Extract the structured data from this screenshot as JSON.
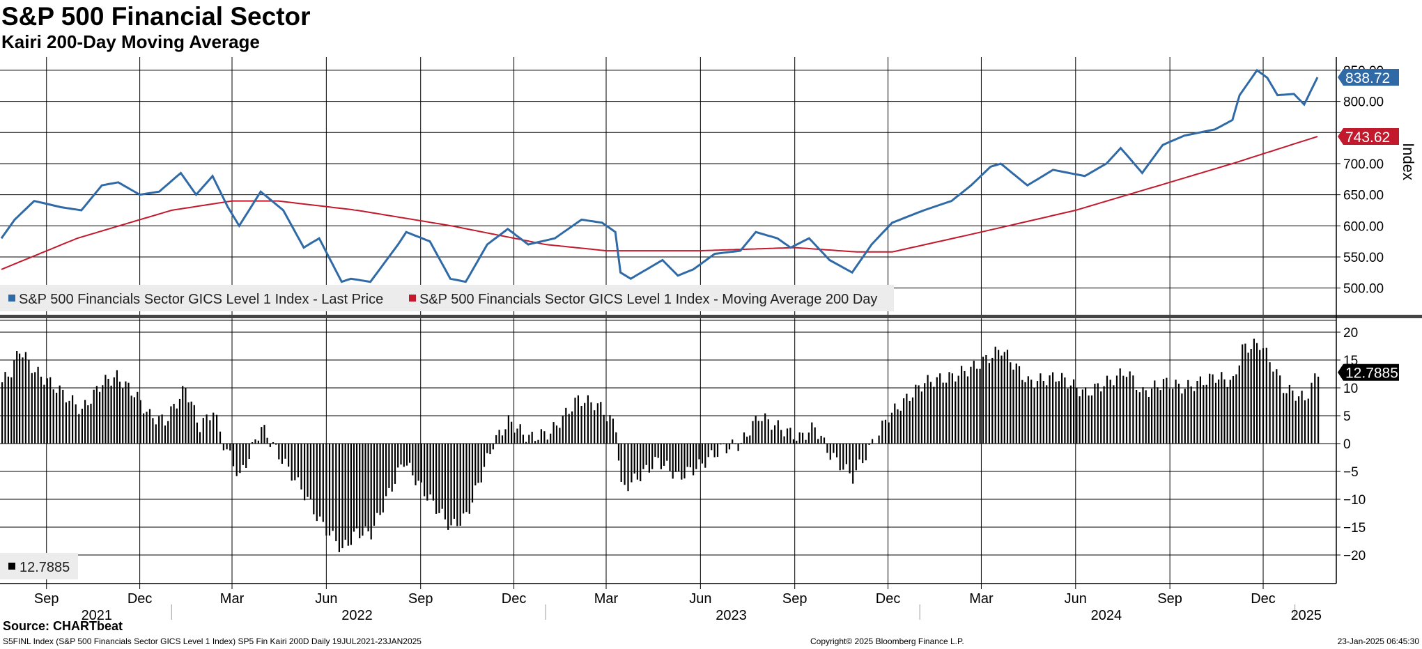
{
  "header": {
    "title": "S&P 500 Financial Sector",
    "subtitle": "Kairi 200-Day Moving Average"
  },
  "colors": {
    "price": "#2f6aa6",
    "ma": "#c2192d",
    "kairi": "#000000",
    "grid": "#000000",
    "legend_bg": "#ececec"
  },
  "chart_data": [
    {
      "type": "line",
      "title": "S&P 500 Financial Sector",
      "ylabel": "Index",
      "ylim": [
        475,
        860
      ],
      "yticks": [
        "500.00",
        "550.00",
        "600.00",
        "650.00",
        "700.00",
        "750.00",
        "800.00",
        "850.00"
      ],
      "legend": [
        "S&P 500 Financials Sector GICS Level 1 Index - Last Price",
        "S&P 500 Financials Sector GICS Level 1 Index - Moving Average 200 Day"
      ],
      "last_values": {
        "price": "838.72",
        "ma": "743.62"
      },
      "series": [
        {
          "name": "S&P 500 Financials Sector GICS Level 1 Index - Last Price",
          "points": [
            [
              "2021-07-19",
              580
            ],
            [
              "2021-08-01",
              610
            ],
            [
              "2021-08-20",
              640
            ],
            [
              "2021-09-15",
              630
            ],
            [
              "2021-10-05",
              625
            ],
            [
              "2021-10-25",
              665
            ],
            [
              "2021-11-10",
              670
            ],
            [
              "2021-12-01",
              650
            ],
            [
              "2021-12-20",
              655
            ],
            [
              "2022-01-10",
              685
            ],
            [
              "2022-01-25",
              650
            ],
            [
              "2022-02-10",
              680
            ],
            [
              "2022-02-25",
              630
            ],
            [
              "2022-03-08",
              600
            ],
            [
              "2022-03-29",
              655
            ],
            [
              "2022-04-20",
              625
            ],
            [
              "2022-05-10",
              565
            ],
            [
              "2022-05-25",
              580
            ],
            [
              "2022-06-16",
              510
            ],
            [
              "2022-06-25",
              515
            ],
            [
              "2022-07-14",
              510
            ],
            [
              "2022-08-10",
              570
            ],
            [
              "2022-08-18",
              590
            ],
            [
              "2022-09-10",
              575
            ],
            [
              "2022-09-30",
              515
            ],
            [
              "2022-10-15",
              510
            ],
            [
              "2022-11-05",
              570
            ],
            [
              "2022-11-25",
              595
            ],
            [
              "2022-12-15",
              570
            ],
            [
              "2023-01-10",
              580
            ],
            [
              "2023-02-05",
              610
            ],
            [
              "2023-02-25",
              605
            ],
            [
              "2023-03-10",
              590
            ],
            [
              "2023-03-15",
              525
            ],
            [
              "2023-03-25",
              515
            ],
            [
              "2023-04-25",
              545
            ],
            [
              "2023-05-10",
              520
            ],
            [
              "2023-05-25",
              530
            ],
            [
              "2023-06-15",
              555
            ],
            [
              "2023-07-10",
              560
            ],
            [
              "2023-07-25",
              590
            ],
            [
              "2023-08-15",
              580
            ],
            [
              "2023-08-28",
              565
            ],
            [
              "2023-09-15",
              580
            ],
            [
              "2023-10-05",
              545
            ],
            [
              "2023-10-27",
              525
            ],
            [
              "2023-11-15",
              570
            ],
            [
              "2023-12-05",
              605
            ],
            [
              "2024-01-05",
              625
            ],
            [
              "2024-02-01",
              640
            ],
            [
              "2024-02-20",
              665
            ],
            [
              "2024-03-10",
              695
            ],
            [
              "2024-03-20",
              700
            ],
            [
              "2024-04-15",
              665
            ],
            [
              "2024-05-10",
              690
            ],
            [
              "2024-06-10",
              680
            ],
            [
              "2024-07-01",
              700
            ],
            [
              "2024-07-15",
              725
            ],
            [
              "2024-08-05",
              685
            ],
            [
              "2024-08-25",
              730
            ],
            [
              "2024-09-15",
              745
            ],
            [
              "2024-10-15",
              755
            ],
            [
              "2024-11-01",
              770
            ],
            [
              "2024-11-08",
              810
            ],
            [
              "2024-11-25",
              850
            ],
            [
              "2024-12-05",
              838
            ],
            [
              "2024-12-15",
              810
            ],
            [
              "2024-12-31",
              812
            ],
            [
              "2025-01-10",
              795
            ],
            [
              "2025-01-23",
              838.72
            ]
          ]
        },
        {
          "name": "S&P 500 Financials Sector GICS Level 1 Index - Moving Average 200 Day",
          "points": [
            [
              "2021-07-19",
              530
            ],
            [
              "2021-10-01",
              580
            ],
            [
              "2022-01-01",
              625
            ],
            [
              "2022-03-01",
              640
            ],
            [
              "2022-04-15",
              640
            ],
            [
              "2022-07-01",
              625
            ],
            [
              "2022-10-01",
              600
            ],
            [
              "2023-01-01",
              570
            ],
            [
              "2023-03-01",
              560
            ],
            [
              "2023-06-01",
              560
            ],
            [
              "2023-09-01",
              565
            ],
            [
              "2023-11-01",
              558
            ],
            [
              "2023-12-05",
              558
            ],
            [
              "2024-03-01",
              590
            ],
            [
              "2024-06-01",
              625
            ],
            [
              "2024-09-01",
              670
            ],
            [
              "2024-11-01",
              700
            ],
            [
              "2025-01-23",
              743.62
            ]
          ]
        }
      ]
    },
    {
      "type": "bar",
      "title": "Kairi 200-Day Moving Average",
      "ylim": [
        -25,
        22
      ],
      "yticks": [
        "20",
        "15",
        "10",
        "5",
        "0",
        "-5",
        "-10",
        "-15",
        "-20"
      ],
      "legend": [
        "12.7885"
      ],
      "last_value": "12.7885",
      "points": [
        [
          "2021-07-19",
          11
        ],
        [
          "2021-07-28",
          13
        ],
        [
          "2021-08-05",
          17
        ],
        [
          "2021-08-20",
          13
        ],
        [
          "2021-09-10",
          10
        ],
        [
          "2021-10-05",
          6
        ],
        [
          "2021-10-25",
          11
        ],
        [
          "2021-11-08",
          12
        ],
        [
          "2021-11-25",
          9
        ],
        [
          "2021-12-10",
          5
        ],
        [
          "2021-12-25",
          4
        ],
        [
          "2022-01-14",
          10
        ],
        [
          "2022-01-28",
          3
        ],
        [
          "2022-02-10",
          6
        ],
        [
          "2022-02-20",
          0
        ],
        [
          "2022-03-08",
          -6
        ],
        [
          "2022-03-29",
          3
        ],
        [
          "2022-04-15",
          -2
        ],
        [
          "2022-05-10",
          -9
        ],
        [
          "2022-05-25",
          -14
        ],
        [
          "2022-06-16",
          -19
        ],
        [
          "2022-06-30",
          -16
        ],
        [
          "2022-07-14",
          -16
        ],
        [
          "2022-08-15",
          -3
        ],
        [
          "2022-09-01",
          -8
        ],
        [
          "2022-09-30",
          -15
        ],
        [
          "2022-10-15",
          -13
        ],
        [
          "2022-11-10",
          0
        ],
        [
          "2022-11-25",
          4
        ],
        [
          "2022-12-15",
          1
        ],
        [
          "2023-01-05",
          2
        ],
        [
          "2023-02-01",
          8
        ],
        [
          "2023-02-20",
          7
        ],
        [
          "2023-03-10",
          3
        ],
        [
          "2023-03-15",
          -8
        ],
        [
          "2023-03-25",
          -7
        ],
        [
          "2023-04-20",
          -3
        ],
        [
          "2023-05-10",
          -6
        ],
        [
          "2023-05-30",
          -4
        ],
        [
          "2023-06-20",
          -1
        ],
        [
          "2023-07-10",
          0
        ],
        [
          "2023-07-27",
          5
        ],
        [
          "2023-08-15",
          3
        ],
        [
          "2023-09-05",
          1
        ],
        [
          "2023-09-20",
          3
        ],
        [
          "2023-10-05",
          -2
        ],
        [
          "2023-10-27",
          -6
        ],
        [
          "2023-11-15",
          0
        ],
        [
          "2023-12-01",
          5
        ],
        [
          "2024-01-05",
          11
        ],
        [
          "2024-02-01",
          12
        ],
        [
          "2024-02-25",
          14
        ],
        [
          "2024-03-20",
          17
        ],
        [
          "2024-04-15",
          11
        ],
        [
          "2024-05-15",
          12
        ],
        [
          "2024-06-10",
          9
        ],
        [
          "2024-07-01",
          11
        ],
        [
          "2024-07-20",
          13
        ],
        [
          "2024-08-05",
          9
        ],
        [
          "2024-08-25",
          11
        ],
        [
          "2024-09-15",
          10
        ],
        [
          "2024-10-15",
          12
        ],
        [
          "2024-11-01",
          11
        ],
        [
          "2024-11-10",
          17
        ],
        [
          "2024-11-27",
          18
        ],
        [
          "2024-12-10",
          14
        ],
        [
          "2024-12-20",
          10
        ],
        [
          "2025-01-10",
          8
        ],
        [
          "2025-01-23",
          12.7885
        ]
      ]
    }
  ],
  "xaxis": {
    "months": [
      {
        "label": "Sep",
        "date": "2021-09-01"
      },
      {
        "label": "Dec",
        "date": "2021-12-01"
      },
      {
        "label": "Mar",
        "date": "2022-03-01"
      },
      {
        "label": "Jun",
        "date": "2022-06-01"
      },
      {
        "label": "Sep",
        "date": "2022-09-01"
      },
      {
        "label": "Dec",
        "date": "2022-12-01"
      },
      {
        "label": "Mar",
        "date": "2023-03-01"
      },
      {
        "label": "Jun",
        "date": "2023-06-01"
      },
      {
        "label": "Sep",
        "date": "2023-09-01"
      },
      {
        "label": "Dec",
        "date": "2023-12-01"
      },
      {
        "label": "Mar",
        "date": "2024-03-01"
      },
      {
        "label": "Jun",
        "date": "2024-06-01"
      },
      {
        "label": "Sep",
        "date": "2024-09-01"
      },
      {
        "label": "Dec",
        "date": "2024-12-01"
      }
    ],
    "years": [
      {
        "label": "2021",
        "date": "2021-10-20"
      },
      {
        "label": "2022",
        "date": "2022-07-01"
      },
      {
        "label": "2023",
        "date": "2023-07-01"
      },
      {
        "label": "2024",
        "date": "2024-07-01"
      },
      {
        "label": "2025",
        "date": "2025-01-12"
      }
    ],
    "year_separators": [
      "2022-01-01",
      "2023-01-01",
      "2024-01-01",
      "2025-01-01"
    ]
  },
  "footer": {
    "source": "Source: CHARTbeat",
    "left": "S5FINL Index (S&P 500 Financials Sector GICS Level 1 Index) SP5 Fin Kairi 200D  Daily 19JUL2021-23JAN2025",
    "center": "Copyright© 2025 Bloomberg Finance L.P.",
    "right": "23-Jan-2025 06:45:30"
  }
}
